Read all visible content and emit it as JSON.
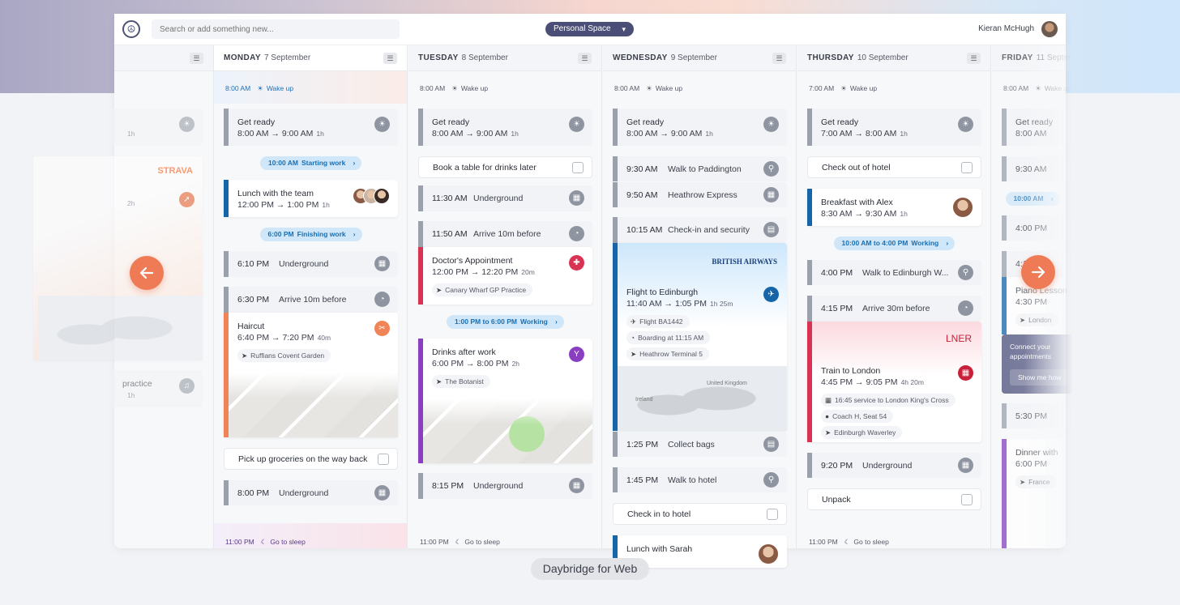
{
  "header": {
    "search_placeholder": "Search or add something new...",
    "space_label": "Personal Space",
    "user_name": "Kieran McHugh"
  },
  "caption": "Daybridge for Web",
  "colors": {
    "accent": "#ee7b55",
    "space": "#4b4f78",
    "grey": "#9aa1ad",
    "blue": "#1565a8",
    "orange": "#f08457",
    "red": "#d93354",
    "purple": "#8a3fc0",
    "lner": "#c8203a"
  },
  "left_column": {
    "events": [
      {
        "type": "block",
        "title": "",
        "start": "",
        "end": "",
        "duration": "1h",
        "icon": "sunrise-icon",
        "color": "grey"
      },
      {
        "type": "block",
        "title": "",
        "start": "",
        "end": "",
        "duration": "2h",
        "icon": "running-icon",
        "color": "orange",
        "brand": "STRAVA",
        "map": true
      },
      {
        "type": "block",
        "title": "practice",
        "start": "",
        "end": "",
        "duration": "1h",
        "icon": "music-icon",
        "color": "grey"
      }
    ]
  },
  "days": [
    {
      "weekday": "MONDAY",
      "date": "7 September",
      "active": true,
      "events": [
        {
          "type": "marker",
          "time": "8:00 AM",
          "label": "Wake up",
          "icon": "sunrise-icon",
          "tone": "blue"
        },
        {
          "type": "block",
          "title": "Get ready",
          "start": "8:00 AM",
          "end": "9:00 AM",
          "duration": "1h",
          "icon": "sunrise-icon",
          "color": "grey"
        },
        {
          "type": "pill",
          "time": "10:00 AM",
          "label": "Starting work"
        },
        {
          "type": "block",
          "title": "Lunch with the team",
          "start": "12:00 PM",
          "end": "1:00 PM",
          "duration": "1h",
          "color": "blue",
          "avatars": 3,
          "white": true
        },
        {
          "type": "pill",
          "time": "6:00 PM",
          "label": "Finishing work"
        },
        {
          "type": "compact",
          "time": "6:10 PM",
          "label": "Underground",
          "icon": "train-icon"
        },
        {
          "type": "compact",
          "time": "6:30 PM",
          "label": "Arrive 10m before",
          "icon": "clock-icon"
        },
        {
          "type": "block",
          "title": "Haircut",
          "start": "6:40 PM",
          "end": "7:20 PM",
          "duration": "40m",
          "icon": "scissors-icon",
          "color": "orange",
          "chips": [
            {
              "icon": "location-icon",
              "text": "Ruffians Covent Garden"
            }
          ],
          "map": true,
          "white": true
        },
        {
          "type": "task",
          "label": "Pick up groceries on the way back",
          "done": false
        },
        {
          "type": "compact",
          "time": "8:00 PM",
          "label": "Underground",
          "icon": "train-icon"
        },
        {
          "type": "marker",
          "time": "11:00 PM",
          "label": "Go to sleep",
          "icon": "moon-icon",
          "tone": "purple"
        }
      ]
    },
    {
      "weekday": "TUESDAY",
      "date": "8 September",
      "events": [
        {
          "type": "marker",
          "time": "8:00 AM",
          "label": "Wake up",
          "icon": "sunrise-icon"
        },
        {
          "type": "block",
          "title": "Get ready",
          "start": "8:00 AM",
          "end": "9:00 AM",
          "duration": "1h",
          "icon": "sunrise-icon",
          "color": "grey"
        },
        {
          "type": "task",
          "label": "Book a table for drinks later",
          "done": false
        },
        {
          "type": "compact",
          "time": "11:30 AM",
          "label": "Underground",
          "icon": "train-icon"
        },
        {
          "type": "compact",
          "time": "11:50 AM",
          "label": "Arrive 10m before",
          "icon": "clock-icon"
        },
        {
          "type": "block",
          "title": "Doctor's Appointment",
          "start": "12:00 PM",
          "end": "12:20 PM",
          "duration": "20m",
          "icon": "medical-cross-icon",
          "color": "red",
          "chips": [
            {
              "icon": "location-icon",
              "text": "Canary Wharf GP Practice"
            }
          ],
          "white": true
        },
        {
          "type": "pill",
          "time": "1:00 PM to 6:00 PM",
          "label": "Working"
        },
        {
          "type": "block",
          "title": "Drinks after work",
          "start": "6:00 PM",
          "end": "8:00 PM",
          "duration": "2h",
          "icon": "cocktail-icon",
          "color": "purple",
          "chips": [
            {
              "icon": "location-icon",
              "text": "The Botanist"
            }
          ],
          "map": true,
          "white": true
        },
        {
          "type": "compact",
          "time": "8:15 PM",
          "label": "Underground",
          "icon": "train-icon"
        },
        {
          "type": "marker",
          "time": "11:00 PM",
          "label": "Go to sleep",
          "icon": "moon-icon"
        }
      ]
    },
    {
      "weekday": "WEDNESDAY",
      "date": "9 September",
      "events": [
        {
          "type": "marker",
          "time": "8:00 AM",
          "label": "Wake up",
          "icon": "sunrise-icon"
        },
        {
          "type": "block",
          "title": "Get ready",
          "start": "8:00 AM",
          "end": "9:00 AM",
          "duration": "1h",
          "icon": "sunrise-icon",
          "color": "grey"
        },
        {
          "type": "compact",
          "time": "9:30 AM",
          "label": "Walk to Paddington",
          "icon": "walking-icon"
        },
        {
          "type": "compact",
          "time": "9:50 AM",
          "label": "Heathrow Express",
          "icon": "train-icon"
        },
        {
          "type": "compact",
          "time": "10:15 AM",
          "label": "Check-in and security",
          "icon": "luggage-icon"
        },
        {
          "type": "block",
          "title": "Flight to Edinburgh",
          "start": "11:40 AM",
          "end": "1:05 PM",
          "duration": "1h 25m",
          "icon": "plane-icon",
          "color": "blue",
          "brand": "BRITISH AIRWAYS",
          "chips": [
            {
              "icon": "plane-icon",
              "text": "Flight BA1442"
            },
            {
              "icon": "clock-icon",
              "text": "Boarding at 11:15 AM"
            },
            {
              "icon": "location-icon",
              "text": "Heathrow Terminal 5"
            }
          ],
          "map": true,
          "geo": [
            "United Kingdom",
            "Ireland"
          ],
          "white": true
        },
        {
          "type": "compact",
          "time": "1:25 PM",
          "label": "Collect bags",
          "icon": "luggage-icon"
        },
        {
          "type": "compact",
          "time": "1:45 PM",
          "label": "Walk to hotel",
          "icon": "walking-icon"
        },
        {
          "type": "task",
          "label": "Check in to hotel",
          "done": false
        },
        {
          "type": "block",
          "title": "Lunch with Sarah",
          "start": "",
          "end": "",
          "duration": "",
          "color": "blue",
          "avatars": 1,
          "white": true
        }
      ]
    },
    {
      "weekday": "THURSDAY",
      "date": "10 September",
      "events": [
        {
          "type": "marker",
          "time": "7:00 AM",
          "label": "Wake up",
          "icon": "sunrise-icon"
        },
        {
          "type": "block",
          "title": "Get ready",
          "start": "7:00 AM",
          "end": "8:00 AM",
          "duration": "1h",
          "icon": "sunrise-icon",
          "color": "grey"
        },
        {
          "type": "task",
          "label": "Check out of hotel",
          "done": false
        },
        {
          "type": "block",
          "title": "Breakfast with Alex",
          "start": "8:30 AM",
          "end": "9:30 AM",
          "duration": "1h",
          "color": "blue",
          "avatars": 1,
          "white": true
        },
        {
          "type": "pill",
          "time": "10:00 AM to 4:00 PM",
          "label": "Working"
        },
        {
          "type": "compact",
          "time": "4:00 PM",
          "label": "Walk to Edinburgh W...",
          "icon": "walking-icon"
        },
        {
          "type": "compact",
          "time": "4:15 PM",
          "label": "Arrive 30m before",
          "icon": "clock-icon"
        },
        {
          "type": "block",
          "title": "Train to London",
          "start": "4:45 PM",
          "end": "9:05 PM",
          "duration": "4h 20m",
          "icon": "train-icon",
          "color": "red",
          "brand": "LNER",
          "chips": [
            {
              "icon": "train-icon",
              "text": "16:45 service to London King's Cross"
            },
            {
              "icon": "person-icon",
              "text": "Coach H, Seat 54"
            },
            {
              "icon": "location-icon",
              "text": "Edinburgh Waverley"
            }
          ],
          "white": true
        },
        {
          "type": "compact",
          "time": "9:20 PM",
          "label": "Underground",
          "icon": "train-icon"
        },
        {
          "type": "task",
          "label": "Unpack",
          "done": false
        },
        {
          "type": "marker",
          "time": "11:00 PM",
          "label": "Go to sleep",
          "icon": "moon-icon"
        }
      ]
    },
    {
      "weekday": "FRIDAY",
      "date": "11 September",
      "events": [
        {
          "type": "marker",
          "time": "8:00 AM",
          "label": "Wake up",
          "icon": "sunrise-icon"
        },
        {
          "type": "block",
          "title": "Get ready",
          "start": "8:00 AM",
          "end": "",
          "duration": "",
          "color": "grey"
        },
        {
          "type": "compact",
          "time": "9:30 AM",
          "label": "",
          "icon": ""
        },
        {
          "type": "pill",
          "time": "10:00 AM",
          "label": ""
        },
        {
          "type": "compact",
          "time": "4:00 PM",
          "label": "",
          "icon": ""
        },
        {
          "type": "compact",
          "time": "4:15 PM",
          "label": "",
          "icon": ""
        },
        {
          "type": "block",
          "title": "Piano Lesson",
          "start": "4:30 PM",
          "end": "",
          "duration": "",
          "color": "blue",
          "chips": [
            {
              "icon": "location-icon",
              "text": "London"
            }
          ],
          "white": true
        },
        {
          "type": "promo",
          "text1": "Connect your",
          "text2": "appointments",
          "button": "Show me how"
        },
        {
          "type": "compact",
          "time": "5:30 PM",
          "label": "",
          "icon": ""
        },
        {
          "type": "block",
          "title": "Dinner with",
          "start": "6:00 PM",
          "end": "",
          "duration": "",
          "color": "purple",
          "chips": [
            {
              "icon": "location-icon",
              "text": "France"
            }
          ],
          "white": true
        }
      ]
    }
  ]
}
